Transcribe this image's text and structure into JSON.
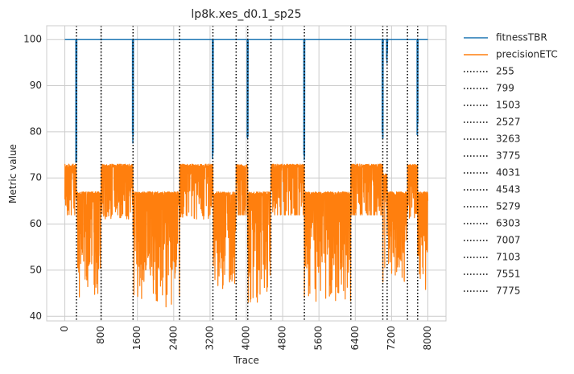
{
  "chart_data": {
    "type": "line",
    "title": "lp8k.xes_d0.1_sp25",
    "xlabel": "Trace",
    "ylabel": "Metric value",
    "xlim": [
      -400,
      8400
    ],
    "ylim": [
      39,
      103
    ],
    "xticks": [
      0,
      800,
      1600,
      2400,
      3200,
      4000,
      4800,
      5600,
      6400,
      7200,
      8000
    ],
    "yticks": [
      40,
      50,
      60,
      70,
      80,
      90,
      100
    ],
    "grid": true,
    "legend_position": "outside-right",
    "series": [
      {
        "name": "fitnessTBR",
        "color": "#1f77b4",
        "baseline": 100,
        "x_range": [
          0,
          8000
        ],
        "dips": [
          {
            "x": 255,
            "min": 72
          },
          {
            "x": 1503,
            "min": 77
          },
          {
            "x": 3263,
            "min": 73
          },
          {
            "x": 4031,
            "min": 76
          },
          {
            "x": 5279,
            "min": 73
          },
          {
            "x": 7007,
            "min": 77
          },
          {
            "x": 7103,
            "min": 94
          },
          {
            "x": 7775,
            "min": 79
          }
        ]
      },
      {
        "name": "precisionETC",
        "color": "#ff7f0e",
        "segments": [
          {
            "x0": 0,
            "x1": 255,
            "high": 73,
            "low": 62,
            "floor": 62
          },
          {
            "x0": 255,
            "x1": 799,
            "high": 67,
            "low": 50,
            "floor": 44
          },
          {
            "x0": 799,
            "x1": 1503,
            "high": 73,
            "low": 62,
            "floor": 61
          },
          {
            "x0": 1503,
            "x1": 2527,
            "high": 67,
            "low": 50,
            "floor": 42
          },
          {
            "x0": 2527,
            "x1": 3263,
            "high": 73,
            "low": 62,
            "floor": 61
          },
          {
            "x0": 3263,
            "x1": 3775,
            "high": 67,
            "low": 52,
            "floor": 46
          },
          {
            "x0": 3775,
            "x1": 4031,
            "high": 73,
            "low": 62,
            "floor": 62
          },
          {
            "x0": 4031,
            "x1": 4543,
            "high": 67,
            "low": 50,
            "floor": 43
          },
          {
            "x0": 4543,
            "x1": 5279,
            "high": 73,
            "low": 62,
            "floor": 62
          },
          {
            "x0": 5279,
            "x1": 6303,
            "high": 67,
            "low": 50,
            "floor": 43
          },
          {
            "x0": 6303,
            "x1": 7007,
            "high": 73,
            "low": 62,
            "floor": 62
          },
          {
            "x0": 7007,
            "x1": 7103,
            "high": 71,
            "low": 50,
            "floor": 46
          },
          {
            "x0": 7103,
            "x1": 7551,
            "high": 67,
            "low": 52,
            "floor": 47
          },
          {
            "x0": 7551,
            "x1": 7775,
            "high": 73,
            "low": 62,
            "floor": 61
          },
          {
            "x0": 7775,
            "x1": 8000,
            "high": 67,
            "low": 52,
            "floor": 45
          }
        ]
      }
    ],
    "vlines": [
      {
        "name": "255",
        "x": 255
      },
      {
        "name": "799",
        "x": 799
      },
      {
        "name": "1503",
        "x": 1503
      },
      {
        "name": "2527",
        "x": 2527
      },
      {
        "name": "3263",
        "x": 3263
      },
      {
        "name": "3775",
        "x": 3775
      },
      {
        "name": "4031",
        "x": 4031
      },
      {
        "name": "4543",
        "x": 4543
      },
      {
        "name": "5279",
        "x": 5279
      },
      {
        "name": "6303",
        "x": 6303
      },
      {
        "name": "7007",
        "x": 7007
      },
      {
        "name": "7103",
        "x": 7103
      },
      {
        "name": "7551",
        "x": 7551
      },
      {
        "name": "7775",
        "x": 7775
      }
    ]
  }
}
